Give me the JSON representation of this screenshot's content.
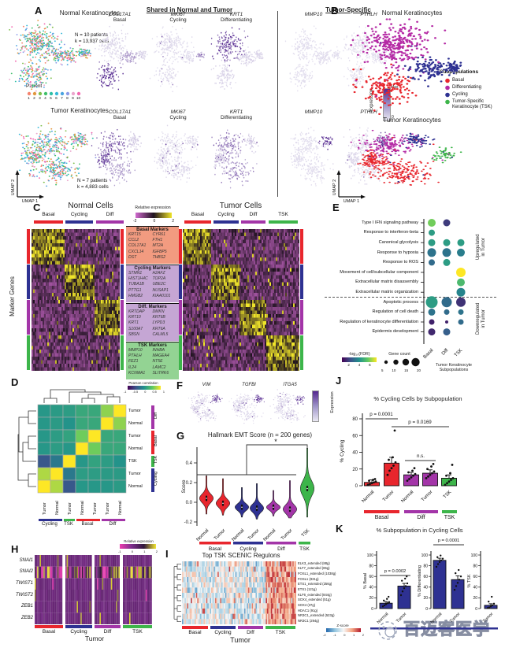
{
  "colors": {
    "basal": "#e8262d",
    "cycling": "#2e3192",
    "diff": "#a335a8",
    "diff_legend": "#b52ba5",
    "tsk": "#3db54a",
    "expr_high": "#54278f",
    "expr_low": "#eae8f3",
    "patient_palette": [
      "#f5846f",
      "#e1973f",
      "#7fbf4d",
      "#3fbf6a",
      "#2fbfa7",
      "#35b8d8",
      "#4aa3e0",
      "#8c9ae8",
      "#eba6cd",
      "#f268b0"
    ]
  },
  "subpops": [
    {
      "label": "Basal",
      "color": "#e8262d"
    },
    {
      "label": "Cycling",
      "color": "#2e3192"
    },
    {
      "label": "Diff",
      "color": "#a335a8"
    },
    {
      "label": "TSK",
      "color": "#3db54a"
    }
  ],
  "panels": {
    "A": {
      "label": "A",
      "normal_title": "Normal Keratinocytes",
      "normal_stats": [
        "N = 10 patients",
        "k = 13,937 cells"
      ],
      "patient_legend_title": "Patient",
      "patient_numbers": [
        "1",
        "2",
        "3",
        "4",
        "5",
        "6",
        "7",
        "8",
        "9",
        "10"
      ],
      "tumor_title": "Tumor Keratinocytes",
      "tumor_stats": [
        "N = 7 patients",
        "k = 4,883 cells"
      ],
      "axis_x": "UMAP 1",
      "axis_y": "UMAP 2",
      "shared_header": "Shared in Normal and Tumor",
      "tumor_specific_header": "Tumor-Specific",
      "features": [
        {
          "gene": "COL17A1",
          "sub": "Basal"
        },
        {
          "gene": "MKI67",
          "sub": "Cycling"
        },
        {
          "gene": "KRT1",
          "sub": "Differentiating"
        },
        {
          "gene": "MMP10",
          "sub": ""
        },
        {
          "gene": "PTHLH",
          "sub": ""
        }
      ],
      "expression_label": "Expression",
      "expr_max": "Max",
      "expr_min": "0"
    },
    "B": {
      "label": "B",
      "normal_title": "Normal Keratinocytes",
      "tumor_title": "Tumor Keratinocytes",
      "legend_title": "Subpopulations",
      "legend": [
        {
          "label": "Basal",
          "color": "#e8262d"
        },
        {
          "label": "Differentiating",
          "color": "#b52ba5"
        },
        {
          "label": "Cycling",
          "color": "#2e3192"
        },
        {
          "label": "Tumor-Specific\nKeratinocyte (TSK)",
          "color": "#3db54a"
        }
      ],
      "axis_x": "UMAP 1",
      "axis_y": "UMAP 2"
    },
    "C": {
      "label": "C",
      "normal_title": "Normal Cells",
      "tumor_title": "Tumor Cells",
      "ylabel": "Marker Genes",
      "normal_groups": [
        "Basal",
        "Cycling",
        "Diff"
      ],
      "tumor_groups": [
        "Basal",
        "Cycling",
        "Diff",
        "TSK"
      ],
      "colorbar": {
        "title": "Relative expression",
        "ticks": [
          "-2",
          "0",
          "2"
        ]
      },
      "marker_boxes": [
        {
          "title": "Basal Markers",
          "bg": "#f29b80",
          "genes": [
            [
              "KRT15",
              "CYR61"
            ],
            [
              "CCL2",
              "FTH1"
            ],
            [
              "COL17A1",
              "MT2A"
            ],
            [
              "CXCL14",
              "IGFBP5"
            ],
            [
              "DST",
              "THBS2"
            ]
          ]
        },
        {
          "title": "Cycling Markers",
          "bg": "#c5a6d4",
          "genes": [
            [
              "STMN1",
              "H2AFZ"
            ],
            [
              "HIST1H4C",
              "TOP2A"
            ],
            [
              "TUBA1B",
              "UBE2C"
            ],
            [
              "PTTG1",
              "NUSAP1"
            ],
            [
              "HMGB2",
              "KIAA0101"
            ]
          ]
        },
        {
          "title": "Diff. Markers",
          "bg": "#c5a6d4",
          "genes": [
            [
              "KRTDAP",
              "DMKN"
            ],
            [
              "KRT10",
              "KRT6B"
            ],
            [
              "KRT1",
              "LYPD3"
            ],
            [
              "S100A7",
              "KRT6A"
            ],
            [
              "SBSN",
              "CALML5"
            ]
          ]
        },
        {
          "title": "TSK Markers",
          "bg": "#93d393",
          "genes": [
            [
              "MMP10",
              "INHBA"
            ],
            [
              "PTHLH",
              "MAGEA4"
            ],
            [
              "FEZ1",
              "NT5E"
            ],
            [
              "IL24",
              "LAMC2"
            ],
            [
              "KCNMA1",
              "SLITRK6"
            ]
          ]
        }
      ]
    },
    "E": {
      "label": "E",
      "upregulated_label": "Upregulated\nin Tumor",
      "downregulated_label": "Downregulated\nin Tumor",
      "xcaption": "Tumor Keratinocyte\nSubpopulations"
    },
    "F": {
      "label": "F",
      "genes": [
        "VIM",
        "TGFBI",
        "ITGA5"
      ],
      "expression_label": "Expression"
    },
    "G": {
      "label": "G"
    },
    "H": {
      "label": "H",
      "rows": [
        "SNAI1",
        "SNAI2",
        "TWIST1",
        "TWIST2",
        "ZEB1",
        "ZEB2"
      ],
      "colorbar": {
        "title": "Relative expression",
        "ticks": [
          "-1",
          "0",
          "1",
          "2"
        ]
      },
      "xlabel": "Tumor"
    },
    "I": {
      "label": "I",
      "title": "Top TSK SCENIC Regulons",
      "regulons": [
        "ELK3_extended (88g)",
        "KLF7_extended (85g)",
        "FOSL1_extended (1038g)",
        "FOSL1 (831g)",
        "ETS1_extended (256g)",
        "ETS1 (121g)",
        "KLF6_extended (844g)",
        "SOX4_extended (51g)",
        "SOX4 (37g)",
        "HDAC1 (91g)",
        "NR3C1_extended (523g)",
        "NR3C1 (294g)"
      ],
      "colorbar": {
        "title": "Z-score",
        "ticks": [
          "-2",
          "-1",
          "0",
          "1",
          "2"
        ]
      },
      "xlabel": "Tumor"
    },
    "J": {
      "label": "J"
    },
    "K": {
      "label": "K"
    }
  },
  "watermark": "百迈客医学",
  "chart_data": {
    "correlation_D": {
      "type": "heatmap",
      "row_labels": [
        "Tumor",
        "Normal",
        "Tumor",
        "Normal",
        "TSK",
        "Tumor",
        "Normal"
      ],
      "row_groups": [
        {
          "label": "Diff",
          "color": "#a335a8",
          "span": 2
        },
        {
          "label": "Basal",
          "color": "#e8262d",
          "span": 2
        },
        {
          "label": "TSK",
          "color": "#3db54a",
          "span": 1
        },
        {
          "label": "Cycling",
          "color": "#2e3192",
          "span": 2
        }
      ],
      "col_labels": [
        "Tumor",
        "Normal",
        "Tumor",
        "Normal",
        "Tumor",
        "Tumor",
        "Normal"
      ],
      "col_groups": [
        {
          "label": "Cycling",
          "color": "#2e3192",
          "span": 2
        },
        {
          "label": "TSK",
          "color": "#3db54a",
          "span": 1
        },
        {
          "label": "Basal",
          "color": "#e8262d",
          "span": 2
        },
        {
          "label": "Diff",
          "color": "#a335a8",
          "span": 2
        }
      ],
      "colorbar": {
        "title": "Pearson correlation",
        "ticks": [
          "-1",
          "-0.5",
          "0",
          "0.5",
          "1"
        ],
        "range": [
          -1,
          1
        ]
      },
      "values": [
        [
          0.05,
          0.08,
          0.1,
          0.2,
          0.2,
          0.65,
          1.0
        ],
        [
          0.05,
          0.08,
          0.02,
          0.2,
          0.2,
          1.0,
          0.65
        ],
        [
          0.05,
          0.1,
          0.15,
          0.55,
          1.0,
          0.2,
          0.2
        ],
        [
          0.05,
          0.1,
          0.05,
          1.0,
          0.55,
          0.2,
          0.2
        ],
        [
          -0.45,
          -0.2,
          1.0,
          0.05,
          0.15,
          0.1,
          0.02
        ],
        [
          0.75,
          1.0,
          -0.2,
          0.1,
          0.1,
          0.08,
          0.08
        ],
        [
          1.0,
          0.75,
          -0.45,
          0.05,
          0.05,
          0.05,
          0.08
        ]
      ]
    },
    "go_dotplot_E": {
      "type": "scatter",
      "columns": [
        "Basal",
        "Diff",
        "TSK"
      ],
      "xlabel": "Tumor Keratinocyte Subpopulations",
      "rows": [
        {
          "label": "Type I IFN signaling pathway",
          "section": "up",
          "dots": [
            {
              "size": 10,
              "fdr": 0.78
            },
            {
              "size": 9,
              "fdr": 0.18
            },
            null
          ]
        },
        {
          "label": "Response to interferon-beta",
          "section": "up",
          "dots": [
            {
              "size": 8,
              "fdr": 0.55
            },
            null,
            null
          ]
        },
        {
          "label": "Canonical glycolysis",
          "section": "up",
          "dots": [
            {
              "size": 9,
              "fdr": 0.55
            },
            {
              "size": 9,
              "fdr": 0.55
            },
            {
              "size": 9,
              "fdr": 0.55
            }
          ]
        },
        {
          "label": "Response to hypoxia",
          "section": "up",
          "dots": [
            {
              "size": 11,
              "fdr": 0.38
            },
            {
              "size": 11,
              "fdr": 0.38
            },
            {
              "size": 10,
              "fdr": 0.42
            }
          ]
        },
        {
          "label": "Response to ROS",
          "section": "up",
          "dots": [
            {
              "size": 8,
              "fdr": 0.35
            },
            {
              "size": 9,
              "fdr": 0.55
            },
            null
          ]
        },
        {
          "label": "Movement of cell/subcellular component",
          "section": "up",
          "dots": [
            null,
            null,
            {
              "size": 12,
              "fdr": 1.0
            }
          ]
        },
        {
          "label": "Extracellular matrix disassembly",
          "section": "up",
          "dots": [
            null,
            null,
            {
              "size": 10,
              "fdr": 0.68
            }
          ]
        },
        {
          "label": "Extracellular matrix organization",
          "section": "up",
          "dots": [
            null,
            null,
            {
              "size": 11,
              "fdr": 0.45
            }
          ]
        },
        {
          "label": "Apoptotic process",
          "section": "down",
          "dots": [
            {
              "size": 15,
              "fdr": 0.55
            },
            {
              "size": 13,
              "fdr": 0.35
            },
            {
              "size": 12,
              "fdr": 0.15
            }
          ]
        },
        {
          "label": "Regulation of cell death",
          "section": "down",
          "dots": [
            {
              "size": 9,
              "fdr": 0.38
            },
            {
              "size": 7,
              "fdr": 0.35
            },
            {
              "size": 7,
              "fdr": 0.38
            }
          ]
        },
        {
          "label": "Regulation of keratinocyte differentiation",
          "section": "down",
          "dots": [
            {
              "size": 7,
              "fdr": 0.1
            },
            {
              "size": 4,
              "fdr": 0.1
            },
            {
              "size": 7,
              "fdr": 0.35
            }
          ]
        },
        {
          "label": "Epidermis development",
          "section": "down",
          "dots": [
            {
              "size": 9,
              "fdr": 0.12
            },
            {
              "size": 9,
              "fdr": 0.3
            },
            null
          ]
        }
      ],
      "legend": {
        "fdr_label": "-log₁₀(FDR)",
        "fdr_ticks": [
          "2",
          "4",
          "6"
        ],
        "count_label": "Gene count",
        "count_ticks": [
          "5",
          "10",
          "15",
          "20"
        ]
      }
    },
    "emt_violin_G": {
      "type": "violin",
      "title": "Hallmark EMT Score (n = 200 genes)",
      "ylabel": "Score",
      "yticks": [
        "0.4",
        "0.2",
        "0.0",
        "-0.2"
      ],
      "significance": "*",
      "violins": [
        {
          "group": "Basal",
          "label": "Normal",
          "color": "#e8262d",
          "median": 0.04,
          "min": -0.12,
          "max": 0.27
        },
        {
          "group": "Basal",
          "label": "Tumor",
          "color": "#e8262d",
          "median": -0.01,
          "min": -0.13,
          "max": 0.24
        },
        {
          "group": "Cycling",
          "label": "Normal",
          "color": "#2e3192",
          "median": -0.05,
          "min": -0.15,
          "max": 0.15
        },
        {
          "group": "Cycling",
          "label": "Tumor",
          "color": "#2e3192",
          "median": -0.06,
          "min": -0.17,
          "max": 0.19
        },
        {
          "group": "Diff",
          "label": "Normal",
          "color": "#a335a8",
          "median": -0.05,
          "min": -0.14,
          "max": 0.12
        },
        {
          "group": "Diff",
          "label": "Tumor",
          "color": "#a335a8",
          "median": -0.07,
          "min": -0.16,
          "max": 0.22
        },
        {
          "group": "TSK",
          "label": "TSK",
          "color": "#3db54a",
          "median": 0.14,
          "min": -0.15,
          "max": 0.55
        }
      ],
      "groups": [
        {
          "label": "Basal",
          "color": "#e8262d"
        },
        {
          "label": "Cycling",
          "color": "#2e3192"
        },
        {
          "label": "Diff",
          "color": "#a335a8"
        },
        {
          "label": "TSK",
          "color": "#3db54a"
        }
      ]
    },
    "cycling_bars_J": {
      "type": "bar",
      "title": "% Cycling Cells by Subpopulation",
      "ylabel": "% Cycling",
      "ylim": [
        0,
        80
      ],
      "yticks": [
        0,
        20,
        40,
        60,
        80
      ],
      "bars": [
        {
          "label": "Normal",
          "group": "Basal",
          "color": "#e8262d",
          "value": 4,
          "err": 3,
          "points": [
            1,
            2,
            3,
            4,
            5,
            6,
            7,
            8
          ]
        },
        {
          "label": "Tumor",
          "group": "Basal",
          "color": "#e8262d",
          "value": 27,
          "err": 7,
          "points": [
            13,
            18,
            21,
            24,
            28,
            31,
            34,
            66
          ]
        },
        {
          "label": "Normal",
          "group": "Diff",
          "color": "#a335a8",
          "value": 13,
          "err": 3,
          "points": [
            6,
            8,
            10,
            12,
            14,
            16,
            18,
            21
          ]
        },
        {
          "label": "Tumor",
          "group": "Diff",
          "color": "#a335a8",
          "value": 15,
          "err": 4,
          "points": [
            9,
            11,
            13,
            15,
            17,
            20,
            23,
            26
          ]
        },
        {
          "label": "TSK",
          "group": "TSK",
          "color": "#3db54a",
          "value": 9,
          "err": 4,
          "points": [
            1,
            3,
            5,
            7,
            9,
            12,
            15,
            25
          ]
        }
      ],
      "annotations": [
        {
          "text": "p = 0.0001",
          "between": [
            0,
            1
          ]
        },
        {
          "text": "p = 0.0169",
          "between": [
            1,
            4
          ]
        },
        {
          "text": "n.s.",
          "between": [
            2,
            3
          ]
        }
      ],
      "groups": [
        {
          "label": "Basal",
          "color": "#e8262d",
          "span": 2
        },
        {
          "label": "Diff",
          "color": "#a335a8",
          "span": 2
        },
        {
          "label": "TSK",
          "color": "#3db54a",
          "span": 1
        }
      ]
    },
    "cycling_subpop_K": {
      "type": "bar",
      "title": "% Subpopulation in Cycling Cells",
      "bar_color": "#2e3192",
      "ylim": [
        0,
        100
      ],
      "yticks": [
        0,
        20,
        40,
        60,
        80,
        100
      ],
      "subplots": [
        {
          "ylabel": "% Basal",
          "p": "p = 0.0002",
          "bars": [
            {
              "label": "Normal",
              "value": 10,
              "err": 3,
              "points": [
                4,
                6,
                8,
                10,
                12,
                15,
                18,
                22
              ]
            },
            {
              "label": "Tumor",
              "value": 42,
              "err": 5,
              "points": [
                25,
                32,
                38,
                42,
                47,
                52,
                56,
                60
              ]
            }
          ]
        },
        {
          "ylabel": "% Differentiating",
          "p": "p = 0.0001",
          "bars": [
            {
              "label": "Normal",
              "value": 90,
              "err": 4,
              "points": [
                78,
                83,
                87,
                90,
                93,
                96,
                99
              ]
            },
            {
              "label": "Tumor",
              "value": 54,
              "err": 7,
              "points": [
                35,
                42,
                48,
                54,
                60,
                66,
                72
              ]
            }
          ]
        },
        {
          "ylabel": "% TSK",
          "p": null,
          "bars": [
            {
              "label": "Tumor",
              "value": 6,
              "err": 3,
              "points": [
                1,
                2,
                4,
                6,
                9,
                13,
                22
              ]
            }
          ]
        }
      ]
    }
  }
}
